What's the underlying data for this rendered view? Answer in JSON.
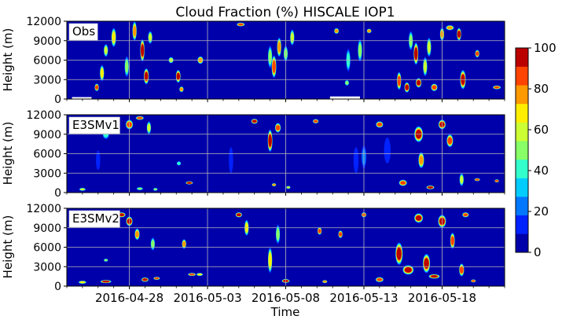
{
  "chart_data": {
    "type": "heatmap",
    "title": "Cloud Fraction (%) HISCALE IOP1",
    "xlabel": "Time",
    "ylabel": "Height (m)",
    "xlim": [
      "2016-04-24",
      "2016-05-22"
    ],
    "x_ticks": [
      "2016-04-28",
      "2016-05-03",
      "2016-05-08",
      "2016-05-13",
      "2016-05-18"
    ],
    "ylim": [
      0,
      12000
    ],
    "y_ticks": [
      "0",
      "3000",
      "6000",
      "9000",
      "12000"
    ],
    "grid": true,
    "colorbar": {
      "vmin": 0,
      "vmax": 100,
      "ticks": [
        "0",
        "20",
        "40",
        "60",
        "80",
        "100"
      ],
      "colors": [
        "#0000aa",
        "#0022ff",
        "#0077ff",
        "#00ccff",
        "#33ffcc",
        "#88ff66",
        "#ccff33",
        "#ffee00",
        "#ff9900",
        "#ff4400",
        "#bb0000"
      ]
    },
    "panels": [
      {
        "label": "Obs",
        "missing_spans": [
          {
            "start": "2016-04-24T08:00",
            "end": "2016-04-25T14:00",
            "height_max": 300
          },
          {
            "start": "2016-05-10T20:00",
            "end": "2016-05-12T18:00",
            "height_max": 400
          }
        ],
        "blobs": [
          {
            "t": "2016-04-25T22:00",
            "h": 1800,
            "w": 0.15,
            "d": 1200,
            "v": 95
          },
          {
            "t": "2016-04-26T06:00",
            "h": 4000,
            "w": 0.15,
            "d": 2500,
            "v": 75
          },
          {
            "t": "2016-04-26T12:00",
            "h": 7500,
            "w": 0.12,
            "d": 2000,
            "v": 60
          },
          {
            "t": "2016-04-27T00:00",
            "h": 9500,
            "w": 0.18,
            "d": 3000,
            "v": 75
          },
          {
            "t": "2016-04-27T20:00",
            "h": 5000,
            "w": 0.12,
            "d": 3200,
            "v": 55
          },
          {
            "t": "2016-04-28T08:00",
            "h": 10500,
            "w": 0.12,
            "d": 3000,
            "v": 85
          },
          {
            "t": "2016-04-28T20:00",
            "h": 7500,
            "w": 0.15,
            "d": 3500,
            "v": 100
          },
          {
            "t": "2016-04-29T02:00",
            "h": 3500,
            "w": 0.2,
            "d": 2500,
            "v": 100
          },
          {
            "t": "2016-04-29T08:00",
            "h": 9500,
            "w": 0.1,
            "d": 2000,
            "v": 65
          },
          {
            "t": "2016-04-30T16:00",
            "h": 6000,
            "w": 0.2,
            "d": 1000,
            "v": 60
          },
          {
            "t": "2016-05-01T03:00",
            "h": 3500,
            "w": 0.18,
            "d": 2000,
            "v": 100
          },
          {
            "t": "2016-05-01T08:00",
            "h": 1500,
            "w": 0.15,
            "d": 900,
            "v": 85
          },
          {
            "t": "2016-05-02T13:00",
            "h": 6000,
            "w": 0.25,
            "d": 1200,
            "v": 80
          },
          {
            "t": "2016-05-05T03:00",
            "h": 11500,
            "w": 0.4,
            "d": 600,
            "v": 95
          },
          {
            "t": "2016-05-07T00:00",
            "h": 6500,
            "w": 0.12,
            "d": 3500,
            "v": 55
          },
          {
            "t": "2016-05-07T06:00",
            "h": 5000,
            "w": 0.18,
            "d": 3500,
            "v": 90
          },
          {
            "t": "2016-05-07T14:00",
            "h": 8000,
            "w": 0.15,
            "d": 3000,
            "v": 85
          },
          {
            "t": "2016-05-08T00:00",
            "h": 7000,
            "w": 0.1,
            "d": 2500,
            "v": 55
          },
          {
            "t": "2016-05-08T10:00",
            "h": 9500,
            "w": 0.12,
            "d": 2500,
            "v": 60
          },
          {
            "t": "2016-05-11T06:00",
            "h": 10500,
            "w": 0.18,
            "d": 900,
            "v": 85
          },
          {
            "t": "2016-05-11T22:00",
            "h": 2500,
            "w": 0.1,
            "d": 900,
            "v": 50
          },
          {
            "t": "2016-05-12T00:00",
            "h": 6000,
            "w": 0.1,
            "d": 3500,
            "v": 40
          },
          {
            "t": "2016-05-12T18:00",
            "h": 7500,
            "w": 0.1,
            "d": 3500,
            "v": 50
          },
          {
            "t": "2016-05-13T08:00",
            "h": 10500,
            "w": 0.18,
            "d": 700,
            "v": 85
          },
          {
            "t": "2016-05-15T06:00",
            "h": 2800,
            "w": 0.12,
            "d": 2800,
            "v": 95
          },
          {
            "t": "2016-05-15T18:00",
            "h": 1800,
            "w": 0.2,
            "d": 1600,
            "v": 100
          },
          {
            "t": "2016-05-16T00:00",
            "h": 9000,
            "w": 0.1,
            "d": 3000,
            "v": 55
          },
          {
            "t": "2016-05-16T08:00",
            "h": 7000,
            "w": 0.18,
            "d": 3500,
            "v": 100
          },
          {
            "t": "2016-05-16T12:00",
            "h": 2500,
            "w": 0.25,
            "d": 1500,
            "v": 100
          },
          {
            "t": "2016-05-16T22:00",
            "h": 5000,
            "w": 0.12,
            "d": 3000,
            "v": 60
          },
          {
            "t": "2016-05-17T04:00",
            "h": 8000,
            "w": 0.12,
            "d": 3000,
            "v": 65
          },
          {
            "t": "2016-05-17T12:00",
            "h": 1800,
            "w": 0.3,
            "d": 1200,
            "v": 90
          },
          {
            "t": "2016-05-18T00:00",
            "h": 10000,
            "w": 0.12,
            "d": 2000,
            "v": 85
          },
          {
            "t": "2016-05-18T12:00",
            "h": 11000,
            "w": 0.4,
            "d": 800,
            "v": 85
          },
          {
            "t": "2016-05-19T02:00",
            "h": 10000,
            "w": 0.12,
            "d": 2000,
            "v": 100
          },
          {
            "t": "2016-05-19T08:00",
            "h": 3000,
            "w": 0.25,
            "d": 3000,
            "v": 100
          },
          {
            "t": "2016-05-20T06:00",
            "h": 7000,
            "w": 0.1,
            "d": 1200,
            "v": 95
          },
          {
            "t": "2016-05-21T12:00",
            "h": 1800,
            "w": 0.4,
            "d": 600,
            "v": 95
          }
        ]
      },
      {
        "label": "E3SMv1",
        "missing_spans": [],
        "blobs": [
          {
            "t": "2016-04-25T00:00",
            "h": 500,
            "w": 0.3,
            "d": 300,
            "v": 60
          },
          {
            "t": "2016-04-26T00:00",
            "h": 5000,
            "w": 0.15,
            "d": 3000,
            "v": 12
          },
          {
            "t": "2016-04-26T12:00",
            "h": 9000,
            "w": 0.3,
            "d": 1500,
            "v": 45
          },
          {
            "t": "2016-04-27T00:00",
            "h": 11000,
            "w": 0.4,
            "d": 800,
            "v": 100
          },
          {
            "t": "2016-04-28T00:00",
            "h": 10500,
            "w": 0.35,
            "d": 1500,
            "v": 95
          },
          {
            "t": "2016-04-28T16:00",
            "h": 11500,
            "w": 0.4,
            "d": 600,
            "v": 95
          },
          {
            "t": "2016-04-29T06:00",
            "h": 10000,
            "w": 0.15,
            "d": 2000,
            "v": 60
          },
          {
            "t": "2016-04-28T16:00",
            "h": 600,
            "w": 0.3,
            "d": 400,
            "v": 55
          },
          {
            "t": "2016-04-29T16:00",
            "h": 500,
            "w": 0.15,
            "d": 300,
            "v": 50
          },
          {
            "t": "2016-05-01T20:00",
            "h": 1500,
            "w": 0.35,
            "d": 500,
            "v": 100
          },
          {
            "t": "2016-05-01T04:00",
            "h": 4500,
            "w": 0.1,
            "d": 700,
            "v": 40
          },
          {
            "t": "2016-05-04T12:00",
            "h": 5000,
            "w": 0.15,
            "d": 4000,
            "v": 12
          },
          {
            "t": "2016-05-06T00:00",
            "h": 11000,
            "w": 0.3,
            "d": 800,
            "v": 100
          },
          {
            "t": "2016-05-07T00:00",
            "h": 8000,
            "w": 0.18,
            "d": 3500,
            "v": 100
          },
          {
            "t": "2016-05-07T12:00",
            "h": 10000,
            "w": 0.25,
            "d": 1500,
            "v": 95
          },
          {
            "t": "2016-05-07T06:00",
            "h": 1200,
            "w": 0.1,
            "d": 500,
            "v": 85
          },
          {
            "t": "2016-05-08T04:00",
            "h": 800,
            "w": 0.12,
            "d": 400,
            "v": 60
          },
          {
            "t": "2016-05-09T22:00",
            "h": 11000,
            "w": 0.25,
            "d": 700,
            "v": 90
          },
          {
            "t": "2016-05-12T12:00",
            "h": 5000,
            "w": 0.2,
            "d": 4000,
            "v": 15
          },
          {
            "t": "2016-05-13T00:00",
            "h": 5500,
            "w": 0.2,
            "d": 3500,
            "v": 20
          },
          {
            "t": "2016-05-14T00:00",
            "h": 10500,
            "w": 0.35,
            "d": 1000,
            "v": 95
          },
          {
            "t": "2016-05-14T12:00",
            "h": 6500,
            "w": 0.3,
            "d": 4000,
            "v": 12
          },
          {
            "t": "2016-05-15T12:00",
            "h": 1500,
            "w": 0.4,
            "d": 1000,
            "v": 95
          },
          {
            "t": "2016-05-16T12:00",
            "h": 9000,
            "w": 0.45,
            "d": 2500,
            "v": 100
          },
          {
            "t": "2016-05-16T16:00",
            "h": 5000,
            "w": 0.25,
            "d": 2500,
            "v": 80
          },
          {
            "t": "2016-05-17T06:00",
            "h": 800,
            "w": 0.4,
            "d": 600,
            "v": 100
          },
          {
            "t": "2016-05-18T00:00",
            "h": 10500,
            "w": 0.35,
            "d": 1500,
            "v": 100
          },
          {
            "t": "2016-05-18T12:00",
            "h": 8000,
            "w": 0.3,
            "d": 2000,
            "v": 95
          },
          {
            "t": "2016-05-19T06:00",
            "h": 2000,
            "w": 0.15,
            "d": 2000,
            "v": 60
          },
          {
            "t": "2016-05-20T06:00",
            "h": 2000,
            "w": 0.25,
            "d": 400,
            "v": 95
          },
          {
            "t": "2016-05-21T12:00",
            "h": 1800,
            "w": 0.15,
            "d": 400,
            "v": 90
          }
        ]
      },
      {
        "label": "E3SMv2",
        "missing_spans": [],
        "blobs": [
          {
            "t": "2016-04-25T00:00",
            "h": 600,
            "w": 0.4,
            "d": 400,
            "v": 75
          },
          {
            "t": "2016-04-26T12:00",
            "h": 700,
            "w": 0.6,
            "d": 500,
            "v": 100
          },
          {
            "t": "2016-04-26T12:00",
            "h": 4000,
            "w": 0.1,
            "d": 500,
            "v": 50
          },
          {
            "t": "2016-04-27T12:00",
            "h": 11000,
            "w": 0.4,
            "d": 800,
            "v": 100
          },
          {
            "t": "2016-04-28T00:00",
            "h": 10000,
            "w": 0.3,
            "d": 1500,
            "v": 100
          },
          {
            "t": "2016-04-28T12:00",
            "h": 8000,
            "w": 0.2,
            "d": 1800,
            "v": 80
          },
          {
            "t": "2016-04-29T00:00",
            "h": 1000,
            "w": 0.35,
            "d": 700,
            "v": 100
          },
          {
            "t": "2016-04-29T12:00",
            "h": 6500,
            "w": 0.1,
            "d": 2000,
            "v": 55
          },
          {
            "t": "2016-04-29T18:00",
            "h": 1200,
            "w": 0.3,
            "d": 400,
            "v": 95
          },
          {
            "t": "2016-05-01T12:00",
            "h": 6500,
            "w": 0.1,
            "d": 1500,
            "v": 80
          },
          {
            "t": "2016-05-02T00:00",
            "h": 1800,
            "w": 0.4,
            "d": 400,
            "v": 95
          },
          {
            "t": "2016-05-02T12:00",
            "h": 1800,
            "w": 0.3,
            "d": 300,
            "v": 70
          },
          {
            "t": "2016-05-05T00:00",
            "h": 11000,
            "w": 0.3,
            "d": 800,
            "v": 100
          },
          {
            "t": "2016-05-05T12:00",
            "h": 9000,
            "w": 0.12,
            "d": 2500,
            "v": 70
          },
          {
            "t": "2016-05-07T00:00",
            "h": 4000,
            "w": 0.12,
            "d": 4000,
            "v": 70
          },
          {
            "t": "2016-05-07T12:00",
            "h": 8000,
            "w": 0.1,
            "d": 3000,
            "v": 55
          },
          {
            "t": "2016-05-08T00:00",
            "h": 800,
            "w": 0.4,
            "d": 600,
            "v": 100
          },
          {
            "t": "2016-05-10T04:00",
            "h": 8500,
            "w": 0.1,
            "d": 1200,
            "v": 95
          },
          {
            "t": "2016-05-10T12:00",
            "h": 700,
            "w": 0.2,
            "d": 400,
            "v": 85
          },
          {
            "t": "2016-05-11T12:00",
            "h": 8000,
            "w": 0.12,
            "d": 1200,
            "v": 95
          },
          {
            "t": "2016-05-13T00:00",
            "h": 11000,
            "w": 0.2,
            "d": 800,
            "v": 90
          },
          {
            "t": "2016-05-14T00:00",
            "h": 1000,
            "w": 0.4,
            "d": 800,
            "v": 95
          },
          {
            "t": "2016-05-15T06:00",
            "h": 5000,
            "w": 0.35,
            "d": 3500,
            "v": 100
          },
          {
            "t": "2016-05-15T20:00",
            "h": 2500,
            "w": 0.6,
            "d": 1500,
            "v": 100
          },
          {
            "t": "2016-05-16T12:00",
            "h": 10500,
            "w": 0.45,
            "d": 1500,
            "v": 100
          },
          {
            "t": "2016-05-17T00:00",
            "h": 3500,
            "w": 0.35,
            "d": 3000,
            "v": 100
          },
          {
            "t": "2016-05-17T12:00",
            "h": 1500,
            "w": 0.6,
            "d": 700,
            "v": 100
          },
          {
            "t": "2016-05-18T00:00",
            "h": 10000,
            "w": 0.4,
            "d": 2000,
            "v": 100
          },
          {
            "t": "2016-05-18T16:00",
            "h": 7000,
            "w": 0.18,
            "d": 2500,
            "v": 90
          },
          {
            "t": "2016-05-19T06:00",
            "h": 2500,
            "w": 0.2,
            "d": 2000,
            "v": 90
          },
          {
            "t": "2016-05-19T12:00",
            "h": 11000,
            "w": 0.3,
            "d": 800,
            "v": 90
          },
          {
            "t": "2016-05-20T00:00",
            "h": 800,
            "w": 0.2,
            "d": 300,
            "v": 90
          }
        ]
      }
    ]
  }
}
